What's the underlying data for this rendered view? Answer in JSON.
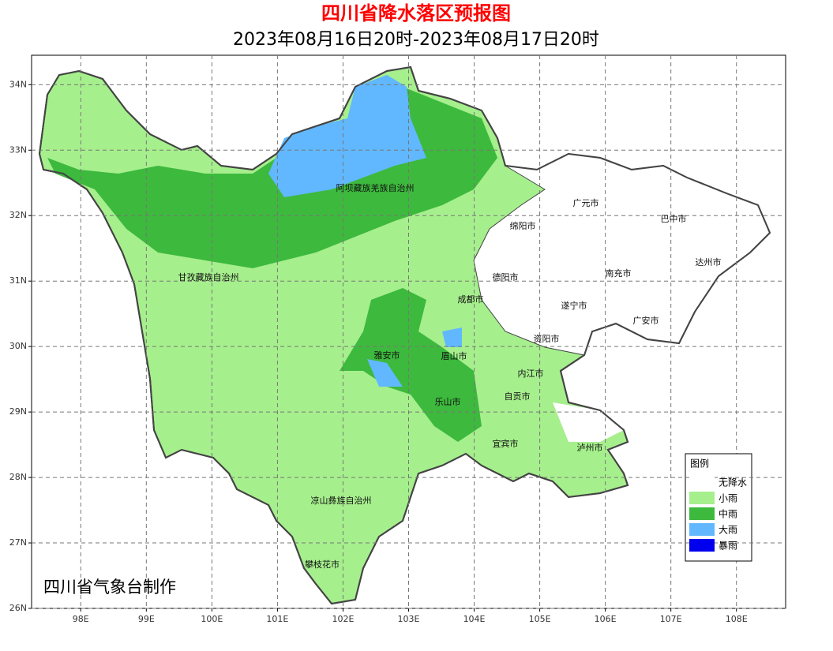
{
  "title": "四川省降水落区预报图",
  "subtitle": "2023年08月16日20时-2023年08月17日20时",
  "credit": "四川省气象台制作",
  "map": {
    "xlim": [
      97.25,
      108.75
    ],
    "ylim": [
      26,
      34.45
    ],
    "xticks": [
      {
        "value": 98,
        "label": "98E"
      },
      {
        "value": 99,
        "label": "99E"
      },
      {
        "value": 100,
        "label": "100E"
      },
      {
        "value": 101,
        "label": "101E"
      },
      {
        "value": 102,
        "label": "102E"
      },
      {
        "value": 103,
        "label": "103E"
      },
      {
        "value": 104,
        "label": "104E"
      },
      {
        "value": 105,
        "label": "105E"
      },
      {
        "value": 106,
        "label": "106E"
      },
      {
        "value": 107,
        "label": "107E"
      },
      {
        "value": 108,
        "label": "108E"
      }
    ],
    "yticks": [
      {
        "value": 26,
        "label": "26N"
      },
      {
        "value": 27,
        "label": "27N"
      },
      {
        "value": 28,
        "label": "28N"
      },
      {
        "value": 29,
        "label": "29N"
      },
      {
        "value": 30,
        "label": "30N"
      },
      {
        "value": 31,
        "label": "31N"
      },
      {
        "value": 32,
        "label": "32N"
      },
      {
        "value": 33,
        "label": "33N"
      },
      {
        "value": 34,
        "label": "34N"
      }
    ],
    "grid": true,
    "regions": [
      "阿坝藏族羌族自治州",
      "广元市",
      "巴中市",
      "绵阳市",
      "达州市",
      "德阳市",
      "南充市",
      "甘孜藏族自治州",
      "成都市",
      "遂宁市",
      "广安市",
      "资阳市",
      "雅安市",
      "眉山市",
      "内江市",
      "自贡市",
      "乐山市",
      "宜宾市",
      "泸州市",
      "凉山彝族自治州",
      "攀枝花市"
    ]
  },
  "legend": {
    "title": "图例",
    "items": [
      {
        "name": "无降水",
        "color": "#ffffff"
      },
      {
        "name": "小雨",
        "color": "#a6ef8d"
      },
      {
        "name": "中雨",
        "color": "#3db93d"
      },
      {
        "name": "大雨",
        "color": "#61b8ff"
      },
      {
        "name": "暴雨",
        "color": "#0000ee"
      }
    ]
  }
}
